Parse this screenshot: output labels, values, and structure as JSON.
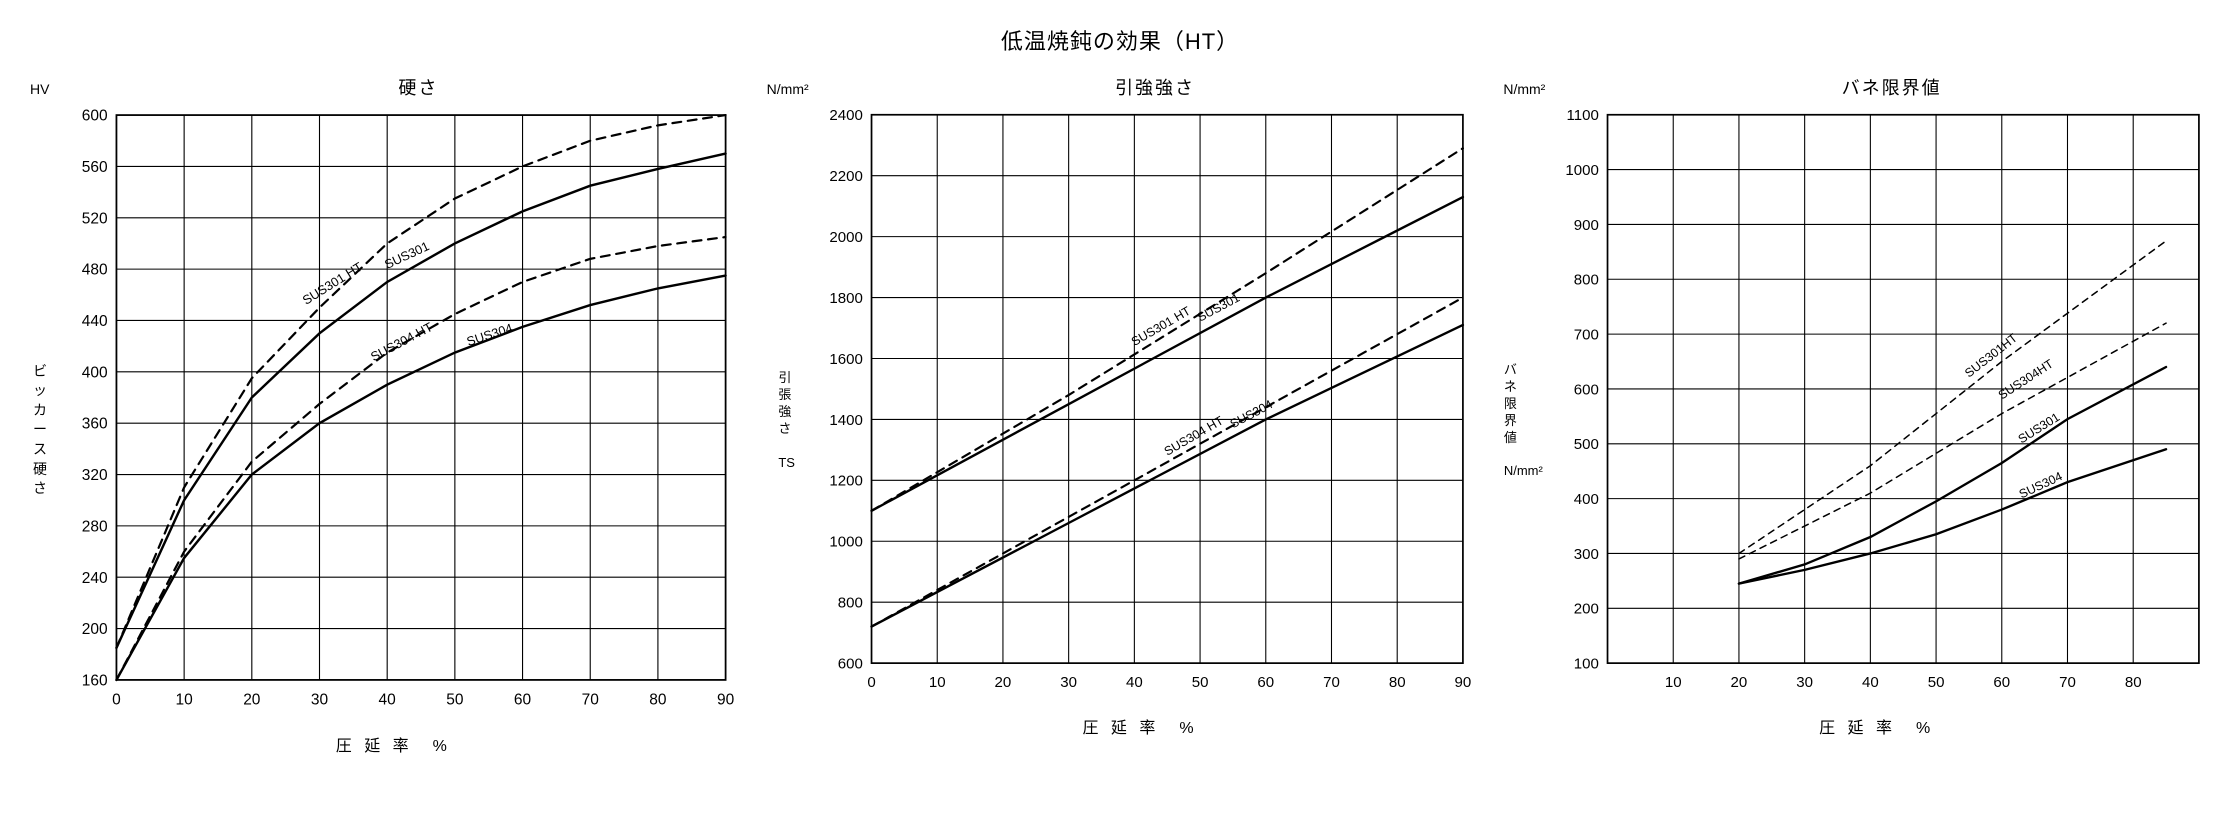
{
  "page_title": "低温焼鈍の効果（HT）",
  "x_axis_label": "圧 延 率　%",
  "background_color": "#ffffff",
  "grid_color": "#000000",
  "axis_color": "#000000",
  "text_color": "#000000",
  "line_width_solid": 2.2,
  "line_width_dashed": 2.0,
  "dash_pattern": "8,6",
  "thin_dash_pattern": "6,5",
  "tick_fontsize": 14,
  "title_fontsize": 18,
  "label_fontsize": 16,
  "chart1": {
    "type": "line",
    "title": "硬さ",
    "y_unit": "HV",
    "y_axis_label": "ビッカース硬さ",
    "xlim": [
      0,
      90
    ],
    "ylim": [
      160,
      600
    ],
    "xticks": [
      0,
      10,
      20,
      30,
      40,
      50,
      60,
      70,
      80,
      90
    ],
    "yticks": [
      160,
      200,
      240,
      280,
      320,
      360,
      400,
      440,
      480,
      520,
      560,
      600
    ],
    "series": [
      {
        "name": "SUS301 HT",
        "dash": true,
        "thin": false,
        "points": [
          [
            0,
            185
          ],
          [
            10,
            310
          ],
          [
            20,
            395
          ],
          [
            30,
            450
          ],
          [
            40,
            500
          ],
          [
            50,
            535
          ],
          [
            60,
            560
          ],
          [
            70,
            580
          ],
          [
            80,
            592
          ],
          [
            90,
            600
          ]
        ],
        "label_pos": [
          28,
          452
        ],
        "label_rot": -32
      },
      {
        "name": "SUS301",
        "dash": false,
        "thin": false,
        "points": [
          [
            0,
            185
          ],
          [
            10,
            300
          ],
          [
            20,
            380
          ],
          [
            30,
            430
          ],
          [
            40,
            470
          ],
          [
            50,
            500
          ],
          [
            60,
            525
          ],
          [
            70,
            545
          ],
          [
            80,
            558
          ],
          [
            90,
            570
          ]
        ],
        "label_pos": [
          40,
          480
        ],
        "label_rot": -25
      },
      {
        "name": "SUS304 HT",
        "dash": true,
        "thin": false,
        "points": [
          [
            0,
            160
          ],
          [
            10,
            260
          ],
          [
            20,
            330
          ],
          [
            30,
            375
          ],
          [
            40,
            415
          ],
          [
            50,
            445
          ],
          [
            60,
            470
          ],
          [
            70,
            488
          ],
          [
            80,
            498
          ],
          [
            90,
            505
          ]
        ],
        "label_pos": [
          38,
          408
        ],
        "label_rot": -28
      },
      {
        "name": "SUS304",
        "dash": false,
        "thin": false,
        "points": [
          [
            0,
            160
          ],
          [
            10,
            255
          ],
          [
            20,
            320
          ],
          [
            30,
            360
          ],
          [
            40,
            390
          ],
          [
            50,
            415
          ],
          [
            60,
            435
          ],
          [
            70,
            452
          ],
          [
            80,
            465
          ],
          [
            90,
            475
          ]
        ],
        "label_pos": [
          52,
          420
        ],
        "label_rot": -18
      }
    ]
  },
  "chart2": {
    "type": "line",
    "title": "引強強さ",
    "y_unit": "N/mm²",
    "y_axis_label": "引張強さ",
    "y_axis_label2": "TS",
    "xlim": [
      0,
      90
    ],
    "ylim": [
      600,
      2400
    ],
    "xticks": [
      0,
      10,
      20,
      30,
      40,
      50,
      60,
      70,
      80,
      90
    ],
    "yticks": [
      600,
      800,
      1000,
      1200,
      1400,
      1600,
      1800,
      2000,
      2200,
      2400
    ],
    "series": [
      {
        "name": "SUS301 HT",
        "dash": true,
        "thin": false,
        "points": [
          [
            0,
            1100
          ],
          [
            30,
            1480
          ],
          [
            60,
            1880
          ],
          [
            90,
            2290
          ]
        ],
        "label_pos": [
          40,
          1640
        ],
        "label_rot": -30
      },
      {
        "name": "SUS301",
        "dash": false,
        "thin": false,
        "points": [
          [
            0,
            1100
          ],
          [
            30,
            1450
          ],
          [
            60,
            1800
          ],
          [
            90,
            2130
          ]
        ],
        "label_pos": [
          50,
          1720
        ],
        "label_rot": -28
      },
      {
        "name": "SUS304 HT",
        "dash": true,
        "thin": false,
        "points": [
          [
            0,
            720
          ],
          [
            30,
            1080
          ],
          [
            60,
            1440
          ],
          [
            90,
            1800
          ]
        ],
        "label_pos": [
          45,
          1280
        ],
        "label_rot": -30
      },
      {
        "name": "SUS304",
        "dash": false,
        "thin": false,
        "points": [
          [
            0,
            720
          ],
          [
            30,
            1060
          ],
          [
            60,
            1400
          ],
          [
            90,
            1710
          ]
        ],
        "label_pos": [
          55,
          1370
        ],
        "label_rot": -28
      }
    ]
  },
  "chart3": {
    "type": "line",
    "title": "バネ限界値",
    "y_unit": "N/mm²",
    "y_axis_label": "バネ限界値",
    "y_axis_label2": "N/mm²",
    "xlim": [
      0,
      90
    ],
    "ylim": [
      100,
      1100
    ],
    "xticks": [
      10,
      20,
      30,
      40,
      50,
      60,
      70,
      80
    ],
    "yticks": [
      100,
      200,
      300,
      400,
      500,
      600,
      700,
      800,
      900,
      1000,
      1100
    ],
    "series": [
      {
        "name": "SUS301HT",
        "dash": true,
        "thin": true,
        "points": [
          [
            20,
            300
          ],
          [
            40,
            460
          ],
          [
            60,
            650
          ],
          [
            85,
            870
          ]
        ],
        "label_pos": [
          55,
          620
        ],
        "label_rot": -38
      },
      {
        "name": "SUS304HT",
        "dash": true,
        "thin": true,
        "points": [
          [
            20,
            290
          ],
          [
            40,
            410
          ],
          [
            60,
            555
          ],
          [
            85,
            720
          ]
        ],
        "label_pos": [
          60,
          580
        ],
        "label_rot": -33
      },
      {
        "name": "SUS301",
        "dash": false,
        "thin": false,
        "points": [
          [
            20,
            245
          ],
          [
            30,
            280
          ],
          [
            40,
            330
          ],
          [
            50,
            395
          ],
          [
            60,
            465
          ],
          [
            70,
            545
          ],
          [
            85,
            640
          ]
        ],
        "label_pos": [
          63,
          500
        ],
        "label_rot": -32
      },
      {
        "name": "SUS304",
        "dash": false,
        "thin": false,
        "points": [
          [
            20,
            245
          ],
          [
            30,
            270
          ],
          [
            40,
            300
          ],
          [
            50,
            335
          ],
          [
            60,
            380
          ],
          [
            70,
            430
          ],
          [
            85,
            490
          ]
        ],
        "label_pos": [
          63,
          400
        ],
        "label_rot": -25
      }
    ]
  }
}
